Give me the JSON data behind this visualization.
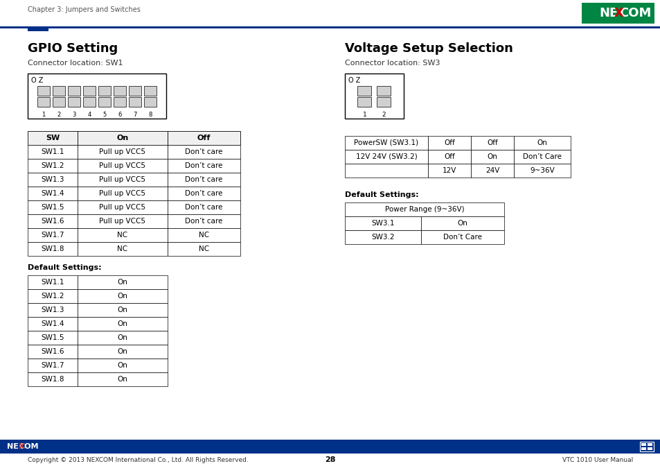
{
  "page_title": "Chapter 3: Jumpers and Switches",
  "page_number": "28",
  "footer_left": "Copyright © 2013 NEXCOM International Co., Ltd. All Rights Reserved.",
  "footer_right": "VTC 1010 User Manual",
  "section1_title": "GPIO Setting",
  "section1_subtitle": "Connector location: SW1",
  "section2_title": "Voltage Setup Selection",
  "section2_subtitle": "Connector location: SW3",
  "gpio_table_header": [
    "SW",
    "On",
    "Off"
  ],
  "gpio_table_rows": [
    [
      "SW1.1",
      "Pull up VCC5",
      "Don’t care"
    ],
    [
      "SW1.2",
      "Pull up VCC5",
      "Don’t care"
    ],
    [
      "SW1.3",
      "Pull up VCC5",
      "Don’t care"
    ],
    [
      "SW1.4",
      "Pull up VCC5",
      "Don’t care"
    ],
    [
      "SW1.5",
      "Pull up VCC5",
      "Don’t care"
    ],
    [
      "SW1.6",
      "Pull up VCC5",
      "Don’t care"
    ],
    [
      "SW1.7",
      "NC",
      "NC"
    ],
    [
      "SW1.8",
      "NC",
      "NC"
    ]
  ],
  "gpio_default_label": "Default Settings:",
  "gpio_default_rows": [
    [
      "SW1.1",
      "On"
    ],
    [
      "SW1.2",
      "On"
    ],
    [
      "SW1.3",
      "On"
    ],
    [
      "SW1.4",
      "On"
    ],
    [
      "SW1.5",
      "On"
    ],
    [
      "SW1.6",
      "On"
    ],
    [
      "SW1.7",
      "On"
    ],
    [
      "SW1.8",
      "On"
    ]
  ],
  "voltage_table_rows": [
    [
      "PowerSW (SW3.1)",
      "Off",
      "Off",
      "On"
    ],
    [
      "12V 24V (SW3.2)",
      "Off",
      "On",
      "Don’t Care"
    ],
    [
      "",
      "12V",
      "24V",
      "9~36V"
    ]
  ],
  "voltage_default_label": "Default Settings:",
  "voltage_default_header": "Power Range (9~36V)",
  "voltage_default_rows": [
    [
      "SW3.1",
      "On"
    ],
    [
      "SW3.2",
      "Don’t Care"
    ]
  ],
  "nexcom_green": "#008542",
  "nexcom_blue": "#003087",
  "bg_color": "#ffffff"
}
